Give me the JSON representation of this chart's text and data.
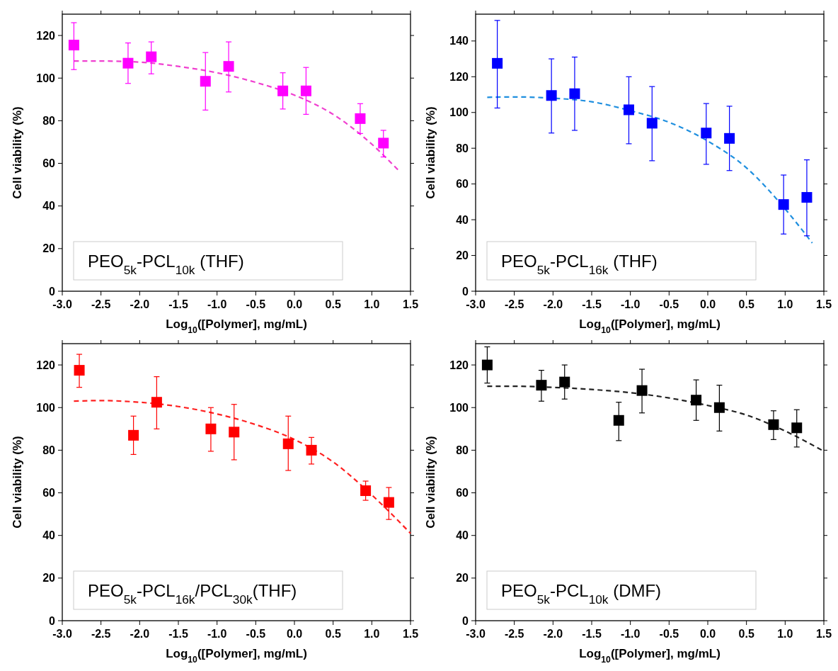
{
  "chart_data": [
    {
      "type": "scatter",
      "xlabel": "Log$_{10}$([Polymer], mg/mL)",
      "ylabel": "Cell viability (%)",
      "line_style": "dashed",
      "xlim": [
        -3,
        1.5
      ],
      "xticks": [
        {
          "value": -3,
          "label": "-3.0"
        },
        {
          "value": -2.5,
          "label": "-2.5"
        },
        {
          "value": -2,
          "label": "-2.0"
        },
        {
          "value": -1.5,
          "label": "-1.5"
        },
        {
          "value": -1,
          "label": "-1.0"
        },
        {
          "value": -0.5,
          "label": "-0.5"
        },
        {
          "value": 0,
          "label": "0.0"
        },
        {
          "value": 0.5,
          "label": "0.5"
        },
        {
          "value": 1,
          "label": "1.0"
        },
        {
          "value": 1.5,
          "label": "1.5"
        }
      ],
      "ylim": [
        0,
        130
      ],
      "yticks": [
        0,
        20,
        40,
        60,
        80,
        100,
        120
      ],
      "annotations": [
        "PEO$_{5k}$-PCL$_{10k}$ (THF)"
      ],
      "series": [
        {
          "type": "scatter",
          "marker": "square",
          "color": "#ff00ff",
          "x": [
            -2.85,
            -2.15,
            -1.85,
            -1.15,
            -0.85,
            -0.15,
            0.15,
            0.85,
            1.15
          ],
          "values": [
            115.5,
            107,
            110,
            98.5,
            105.5,
            94,
            94,
            81,
            69.5
          ],
          "errors": [
            [
              104,
              126
            ],
            [
              97.5,
              116.5
            ],
            [
              102,
              117
            ],
            [
              85,
              112
            ],
            [
              93.5,
              117
            ],
            [
              85.5,
              102.5
            ],
            [
              83,
              105
            ],
            [
              74,
              88
            ],
            [
              63,
              75.5
            ]
          ]
        },
        {
          "type": "line",
          "color": "#f040d0",
          "x": [
            -2.85,
            -2.5,
            -2,
            -1.5,
            -1,
            -0.5,
            0,
            0.5,
            1,
            1.35
          ],
          "values": [
            108,
            108,
            107.5,
            105.5,
            102.5,
            98,
            92,
            83,
            69,
            56.5
          ]
        }
      ]
    },
    {
      "type": "scatter",
      "xlabel": "Log$_{10}$([Polymer], mg/mL)",
      "ylabel": "Cell viability (%)",
      "line_style": "dashed",
      "xlim": [
        -3,
        1.5
      ],
      "xticks": [
        {
          "value": -3,
          "label": "-3.0"
        },
        {
          "value": -2.5,
          "label": "-2.5"
        },
        {
          "value": -2,
          "label": "-2.0"
        },
        {
          "value": -1.5,
          "label": "-1.5"
        },
        {
          "value": -1,
          "label": "-1.0"
        },
        {
          "value": -0.5,
          "label": "-0.5"
        },
        {
          "value": 0,
          "label": "0.0"
        },
        {
          "value": 0.5,
          "label": "0.5"
        },
        {
          "value": 1,
          "label": "1.0"
        },
        {
          "value": 1.5,
          "label": "1.5"
        }
      ],
      "ylim": [
        0,
        155
      ],
      "yticks": [
        0,
        20,
        40,
        60,
        80,
        100,
        120,
        140
      ],
      "annotations": [
        "PEO$_{5k}$-PCL$_{16k}$ (THF)"
      ],
      "series": [
        {
          "type": "scatter",
          "marker": "square",
          "color": "#0000ff",
          "x": [
            -2.72,
            -2.02,
            -1.72,
            -1.02,
            -0.72,
            -0.02,
            0.28,
            0.98,
            1.28
          ],
          "values": [
            127.5,
            109.5,
            110.5,
            101.5,
            94,
            88.5,
            85.5,
            48.5,
            52.5
          ],
          "errors": [
            [
              102.5,
              151.5
            ],
            [
              88.5,
              130
            ],
            [
              90,
              131
            ],
            [
              82.5,
              120
            ],
            [
              73,
              114.5
            ],
            [
              71,
              105
            ],
            [
              67.5,
              103.5
            ],
            [
              32,
              65
            ],
            [
              31,
              73.5
            ]
          ]
        },
        {
          "type": "line",
          "color": "#1f8fdf",
          "x": [
            -2.85,
            -2.5,
            -2,
            -1.5,
            -1,
            -0.5,
            0,
            0.5,
            1,
            1.35
          ],
          "values": [
            108.5,
            108.7,
            108,
            106,
            101,
            94.5,
            84,
            69,
            46,
            27
          ]
        }
      ]
    },
    {
      "type": "scatter",
      "xlabel": "Log$_{10}$([Polymer], mg/mL)",
      "ylabel": "Cell viability (%)",
      "line_style": "dashed",
      "xlim": [
        -3,
        1.5
      ],
      "xticks": [
        {
          "value": -3,
          "label": "-3.0"
        },
        {
          "value": -2.5,
          "label": "-2.5"
        },
        {
          "value": -2,
          "label": "-2.0"
        },
        {
          "value": -1.5,
          "label": "-1.5"
        },
        {
          "value": -1,
          "label": "-1.0"
        },
        {
          "value": -0.5,
          "label": "-0.5"
        },
        {
          "value": 0,
          "label": "0.0"
        },
        {
          "value": 0.5,
          "label": "0.5"
        },
        {
          "value": 1,
          "label": "1.0"
        },
        {
          "value": 1.5,
          "label": "1.5"
        }
      ],
      "ylim": [
        0,
        130
      ],
      "yticks": [
        0,
        20,
        40,
        60,
        80,
        100,
        120
      ],
      "annotations": [
        "PEO$_{5k}$-PCL$_{16k}$/PCL$_{30k}$(THF)"
      ],
      "series": [
        {
          "type": "scatter",
          "marker": "square",
          "color": "#ff0000",
          "x": [
            -2.78,
            -2.08,
            -1.78,
            -1.08,
            -0.78,
            -0.08,
            0.22,
            0.92,
            1.22
          ],
          "values": [
            117.5,
            87,
            102.5,
            90,
            88.5,
            83,
            80,
            61,
            55.5
          ],
          "errors": [
            [
              109.5,
              125
            ],
            [
              78,
              96
            ],
            [
              90,
              114.5
            ],
            [
              79.5,
              100
            ],
            [
              75.5,
              101.5
            ],
            [
              70.5,
              96
            ],
            [
              73.5,
              86
            ],
            [
              56.5,
              65.5
            ],
            [
              47.5,
              62.5
            ]
          ]
        },
        {
          "type": "line",
          "color": "#ff2020",
          "x": [
            -2.85,
            -2.5,
            -2,
            -1.5,
            -1,
            -0.5,
            0,
            0.5,
            1,
            1.5
          ],
          "values": [
            103,
            103.3,
            102.5,
            100.5,
            97,
            92,
            85,
            74.5,
            59,
            41
          ]
        }
      ]
    },
    {
      "type": "scatter",
      "xlabel": "Log$_{10}$([Polymer], mg/mL)",
      "ylabel": "Cell viability (%)",
      "line_style": "dashed",
      "xlim": [
        -3,
        1.5
      ],
      "xticks": [
        {
          "value": -3,
          "label": "-3.0"
        },
        {
          "value": -2.5,
          "label": "-2.5"
        },
        {
          "value": -2,
          "label": "-2.0"
        },
        {
          "value": -1.5,
          "label": "-1.5"
        },
        {
          "value": -1,
          "label": "-1.0"
        },
        {
          "value": -0.5,
          "label": "-0.5"
        },
        {
          "value": 0,
          "label": "0.0"
        },
        {
          "value": 0.5,
          "label": "0.5"
        },
        {
          "value": 1,
          "label": "1.0"
        },
        {
          "value": 1.5,
          "label": "1.5"
        }
      ],
      "ylim": [
        0,
        130
      ],
      "yticks": [
        0,
        20,
        40,
        60,
        80,
        100,
        120
      ],
      "annotations": [
        "PEO$_{5k}$-PCL$_{10k}$ (DMF)"
      ],
      "series": [
        {
          "type": "scatter",
          "marker": "square",
          "color": "#000000",
          "x": [
            -2.85,
            -2.15,
            -1.85,
            -1.15,
            -0.85,
            -0.15,
            0.15,
            0.85,
            1.15
          ],
          "values": [
            120,
            110.5,
            112,
            94,
            108,
            103.5,
            100,
            92,
            90.5
          ],
          "errors": [
            [
              111.5,
              128.5
            ],
            [
              103,
              117.5
            ],
            [
              104,
              120
            ],
            [
              84.5,
              102.5
            ],
            [
              97.5,
              118
            ],
            [
              94,
              113
            ],
            [
              89,
              110.5
            ],
            [
              85,
              98.5
            ],
            [
              81.5,
              99
            ]
          ]
        },
        {
          "type": "line",
          "color": "#222222",
          "x": [
            -2.85,
            -2.5,
            -2,
            -1.5,
            -1,
            -0.5,
            0,
            0.5,
            1,
            1.5
          ],
          "values": [
            110,
            110,
            109.5,
            108.5,
            107,
            104.5,
            101,
            96.5,
            89,
            79.5
          ]
        }
      ]
    }
  ]
}
